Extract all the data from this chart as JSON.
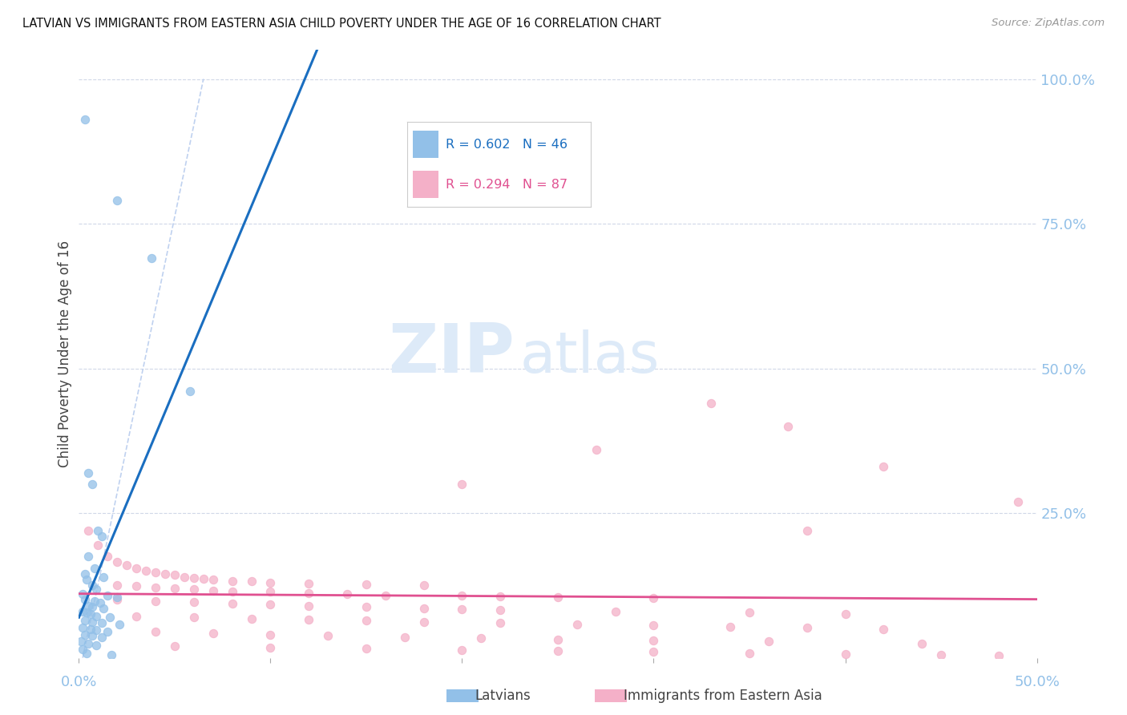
{
  "title": "LATVIAN VS IMMIGRANTS FROM EASTERN ASIA CHILD POVERTY UNDER THE AGE OF 16 CORRELATION CHART",
  "source": "Source: ZipAtlas.com",
  "ylabel": "Child Poverty Under the Age of 16",
  "ytick_labels": [
    "100.0%",
    "75.0%",
    "50.0%",
    "25.0%"
  ],
  "ytick_positions": [
    1.0,
    0.75,
    0.5,
    0.25
  ],
  "xlim": [
    0.0,
    0.5
  ],
  "ylim": [
    0.0,
    1.05
  ],
  "blue_color": "#92c0e8",
  "pink_color": "#f4b0c8",
  "blue_line_color": "#1a6ec0",
  "pink_line_color": "#e05090",
  "dashed_line_color": "#b8ccee",
  "legend_label_blue": "Latvians",
  "legend_label_pink": "Immigrants from Eastern Asia",
  "watermark_zip": "ZIP",
  "watermark_atlas": "atlas",
  "blue_points": [
    [
      0.003,
      0.93
    ],
    [
      0.02,
      0.79
    ],
    [
      0.038,
      0.69
    ],
    [
      0.058,
      0.46
    ],
    [
      0.005,
      0.32
    ],
    [
      0.007,
      0.3
    ],
    [
      0.01,
      0.22
    ],
    [
      0.012,
      0.21
    ],
    [
      0.005,
      0.175
    ],
    [
      0.008,
      0.155
    ],
    [
      0.003,
      0.145
    ],
    [
      0.013,
      0.14
    ],
    [
      0.004,
      0.135
    ],
    [
      0.007,
      0.125
    ],
    [
      0.009,
      0.118
    ],
    [
      0.002,
      0.11
    ],
    [
      0.015,
      0.108
    ],
    [
      0.02,
      0.105
    ],
    [
      0.003,
      0.1
    ],
    [
      0.008,
      0.098
    ],
    [
      0.011,
      0.095
    ],
    [
      0.005,
      0.09
    ],
    [
      0.007,
      0.088
    ],
    [
      0.013,
      0.085
    ],
    [
      0.002,
      0.08
    ],
    [
      0.004,
      0.078
    ],
    [
      0.006,
      0.075
    ],
    [
      0.009,
      0.072
    ],
    [
      0.016,
      0.07
    ],
    [
      0.003,
      0.065
    ],
    [
      0.007,
      0.062
    ],
    [
      0.012,
      0.06
    ],
    [
      0.021,
      0.058
    ],
    [
      0.002,
      0.052
    ],
    [
      0.006,
      0.05
    ],
    [
      0.009,
      0.048
    ],
    [
      0.015,
      0.045
    ],
    [
      0.003,
      0.04
    ],
    [
      0.007,
      0.038
    ],
    [
      0.012,
      0.035
    ],
    [
      0.001,
      0.028
    ],
    [
      0.005,
      0.025
    ],
    [
      0.009,
      0.022
    ],
    [
      0.002,
      0.015
    ],
    [
      0.004,
      0.008
    ],
    [
      0.017,
      0.005
    ]
  ],
  "pink_points": [
    [
      0.005,
      0.22
    ],
    [
      0.01,
      0.195
    ],
    [
      0.015,
      0.175
    ],
    [
      0.02,
      0.165
    ],
    [
      0.025,
      0.16
    ],
    [
      0.03,
      0.155
    ],
    [
      0.035,
      0.15
    ],
    [
      0.04,
      0.148
    ],
    [
      0.045,
      0.145
    ],
    [
      0.05,
      0.143
    ],
    [
      0.055,
      0.14
    ],
    [
      0.06,
      0.138
    ],
    [
      0.065,
      0.136
    ],
    [
      0.07,
      0.135
    ],
    [
      0.08,
      0.133
    ],
    [
      0.09,
      0.132
    ],
    [
      0.1,
      0.13
    ],
    [
      0.12,
      0.128
    ],
    [
      0.15,
      0.127
    ],
    [
      0.18,
      0.126
    ],
    [
      0.02,
      0.125
    ],
    [
      0.03,
      0.124
    ],
    [
      0.04,
      0.122
    ],
    [
      0.05,
      0.12
    ],
    [
      0.06,
      0.118
    ],
    [
      0.07,
      0.116
    ],
    [
      0.08,
      0.115
    ],
    [
      0.1,
      0.114
    ],
    [
      0.12,
      0.112
    ],
    [
      0.14,
      0.11
    ],
    [
      0.16,
      0.108
    ],
    [
      0.2,
      0.107
    ],
    [
      0.22,
      0.106
    ],
    [
      0.25,
      0.105
    ],
    [
      0.3,
      0.104
    ],
    [
      0.02,
      0.1
    ],
    [
      0.04,
      0.098
    ],
    [
      0.06,
      0.096
    ],
    [
      0.08,
      0.094
    ],
    [
      0.1,
      0.092
    ],
    [
      0.12,
      0.09
    ],
    [
      0.15,
      0.088
    ],
    [
      0.18,
      0.086
    ],
    [
      0.2,
      0.084
    ],
    [
      0.22,
      0.082
    ],
    [
      0.28,
      0.08
    ],
    [
      0.35,
      0.078
    ],
    [
      0.4,
      0.076
    ],
    [
      0.03,
      0.072
    ],
    [
      0.06,
      0.07
    ],
    [
      0.09,
      0.068
    ],
    [
      0.12,
      0.066
    ],
    [
      0.15,
      0.064
    ],
    [
      0.18,
      0.062
    ],
    [
      0.22,
      0.06
    ],
    [
      0.26,
      0.058
    ],
    [
      0.3,
      0.056
    ],
    [
      0.34,
      0.054
    ],
    [
      0.38,
      0.052
    ],
    [
      0.42,
      0.05
    ],
    [
      0.04,
      0.045
    ],
    [
      0.07,
      0.042
    ],
    [
      0.1,
      0.04
    ],
    [
      0.13,
      0.038
    ],
    [
      0.17,
      0.036
    ],
    [
      0.21,
      0.034
    ],
    [
      0.25,
      0.032
    ],
    [
      0.3,
      0.03
    ],
    [
      0.36,
      0.028
    ],
    [
      0.44,
      0.025
    ],
    [
      0.05,
      0.02
    ],
    [
      0.1,
      0.018
    ],
    [
      0.15,
      0.016
    ],
    [
      0.2,
      0.014
    ],
    [
      0.25,
      0.012
    ],
    [
      0.3,
      0.01
    ],
    [
      0.35,
      0.008
    ],
    [
      0.4,
      0.006
    ],
    [
      0.45,
      0.005
    ],
    [
      0.48,
      0.004
    ],
    [
      0.27,
      0.36
    ],
    [
      0.33,
      0.44
    ],
    [
      0.37,
      0.4
    ],
    [
      0.49,
      0.27
    ],
    [
      0.2,
      0.3
    ],
    [
      0.42,
      0.33
    ],
    [
      0.38,
      0.22
    ]
  ]
}
